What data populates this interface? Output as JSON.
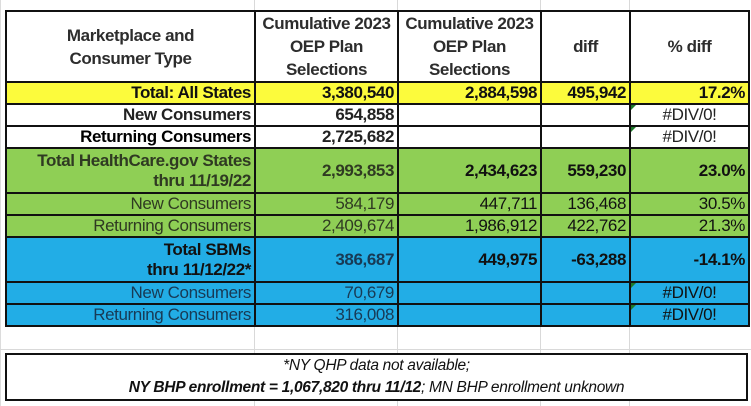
{
  "header": {
    "col1": "Marketplace and Consumer Type",
    "col2": "Cumulative 2023 OEP Plan Selections",
    "col3": "Cumulative 2023 OEP Plan Selections",
    "col4": "diff",
    "col5": "% diff"
  },
  "rows": [
    {
      "label": "Total: All States",
      "v1": "3,380,540",
      "v2": "2,884,598",
      "diff": "495,942",
      "pct": "17.2%"
    },
    {
      "label": "New Consumers",
      "v1": "654,858",
      "v2": "",
      "diff": "",
      "pct": "#DIV/0!"
    },
    {
      "label": "Returning Consumers",
      "v1": "2,725,682",
      "v2": "",
      "diff": "",
      "pct": "#DIV/0!"
    },
    {
      "label": "Total HealthCare.gov States",
      "label2": "thru 11/19/22",
      "v1": "2,993,853",
      "v2": "2,434,623",
      "diff": "559,230",
      "pct": "23.0%"
    },
    {
      "label": "New Consumers",
      "v1": "584,179",
      "v2": "447,711",
      "diff": "136,468",
      "pct": "30.5%"
    },
    {
      "label": "Returning Consumers",
      "v1": "2,409,674",
      "v2": "1,986,912",
      "diff": "422,762",
      "pct": "21.3%"
    },
    {
      "label": "Total SBMs",
      "label2": "thru 11/12/22*",
      "v1": "386,687",
      "v2": "449,975",
      "diff": "-63,288",
      "pct": "-14.1%"
    },
    {
      "label": "New Consumers",
      "v1": "70,679",
      "v2": "",
      "diff": "",
      "pct": "#DIV/0!"
    },
    {
      "label": "Returning Consumers",
      "v1": "316,008",
      "v2": "",
      "diff": "",
      "pct": "#DIV/0!"
    }
  ],
  "note": {
    "line1": "*NY QHP data not available;",
    "line2_bold": "NY BHP enrollment = 1,067,820 thru 11/12",
    "line2_rest": "; MN BHP enrollment unknown"
  },
  "colors": {
    "yellow": "#fcfb3c",
    "green": "#8fcf55",
    "blue": "#22ade6"
  }
}
